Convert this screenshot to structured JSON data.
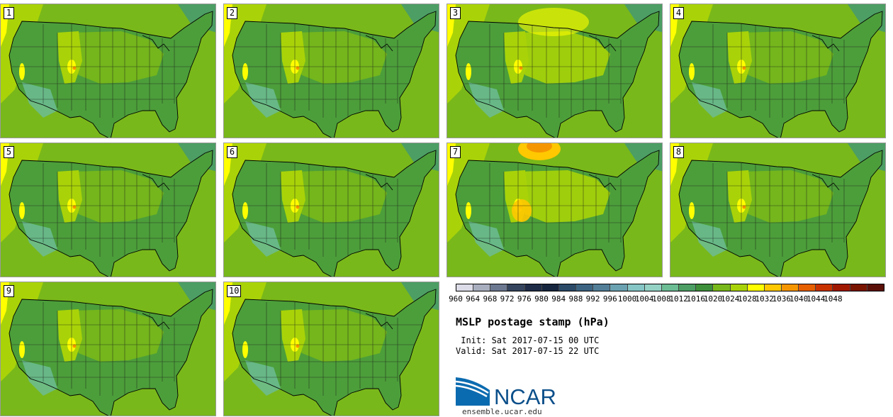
{
  "members": [
    {
      "label": "1",
      "variant": "normal"
    },
    {
      "label": "2",
      "variant": "normal"
    },
    {
      "label": "3",
      "variant": "light"
    },
    {
      "label": "4",
      "variant": "normal"
    },
    {
      "label": "5",
      "variant": "normal"
    },
    {
      "label": "6",
      "variant": "normal"
    },
    {
      "label": "7",
      "variant": "high"
    },
    {
      "label": "8",
      "variant": "normal"
    },
    {
      "label": "9",
      "variant": "normal"
    },
    {
      "label": "10",
      "variant": "normal"
    }
  ],
  "colorbar": {
    "ticks": [
      "960",
      "964",
      "968",
      "972",
      "976",
      "980",
      "984",
      "988",
      "992",
      "996",
      "1000",
      "1004",
      "1008",
      "1012",
      "1016",
      "1020",
      "1024",
      "1028",
      "1032",
      "1036",
      "1040",
      "1044",
      "1048"
    ],
    "colors": [
      "#dcdce8",
      "#a8aebe",
      "#6c7890",
      "#34445e",
      "#1e2c48",
      "#16263e",
      "#2a4a68",
      "#3c6482",
      "#527e98",
      "#6ba2b2",
      "#86c6c6",
      "#94d2c6",
      "#6cbc94",
      "#4c9e64",
      "#3d8f3a",
      "#79b81a",
      "#a9d308",
      "#ffff00",
      "#ffc800",
      "#f59600",
      "#e65f00",
      "#c83200",
      "#a01800",
      "#781400",
      "#5a1008"
    ]
  },
  "title": "MSLP postage stamp (hPa)",
  "init_label": " Init: Sat 2017-07-15 00 UTC",
  "valid_label": "Valid: Sat 2017-07-15 22 UTC",
  "logo_text": "NCAR",
  "url": "ensemble.ucar.edu",
  "colors": {
    "land_mid": "#4c9e3a",
    "land_light": "#79b81a",
    "ridge": "#a9d308",
    "high": "#ffff00"
  }
}
